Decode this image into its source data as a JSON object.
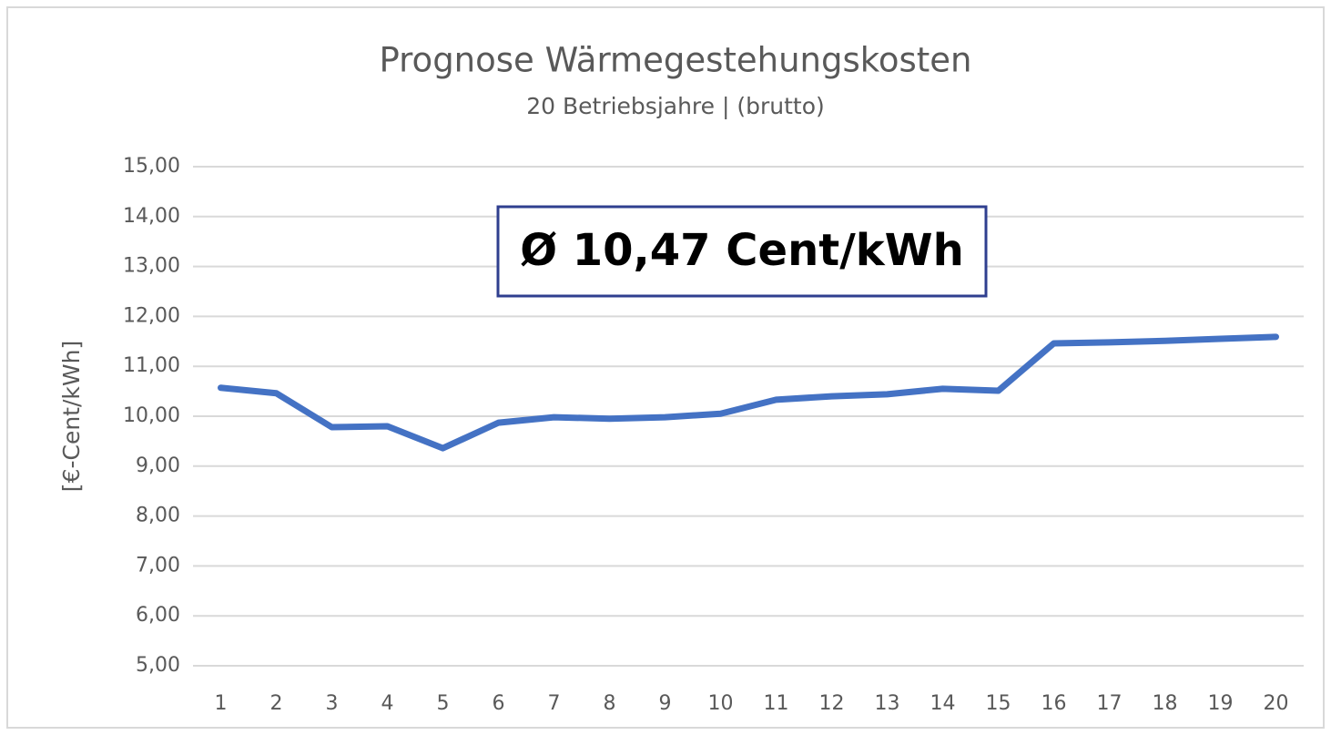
{
  "chart_data": {
    "type": "line",
    "title": "Prognose Wärmegestehungskosten",
    "subtitle": "20 Betriebsjahre | (brutto)",
    "y_label": "[€-Cent/kWh]",
    "annotation": "Ø 10,47 Cent/kWh",
    "categories": [
      "1",
      "2",
      "3",
      "4",
      "5",
      "6",
      "7",
      "8",
      "9",
      "10",
      "11",
      "12",
      "13",
      "14",
      "15",
      "16",
      "17",
      "18",
      "19",
      "20"
    ],
    "series": [
      {
        "name": "Wärmegestehungskosten",
        "color": "#4472c4",
        "values": [
          10.57,
          10.46,
          9.78,
          9.8,
          9.36,
          9.87,
          9.98,
          9.95,
          9.98,
          10.05,
          10.33,
          10.4,
          10.44,
          10.55,
          10.51,
          11.46,
          11.48,
          11.51,
          11.55,
          11.59
        ]
      }
    ],
    "ylim": [
      5,
      15
    ],
    "yticks": [
      {
        "value": 5,
        "label": "5,00"
      },
      {
        "value": 6,
        "label": "6,00"
      },
      {
        "value": 7,
        "label": "7,00"
      },
      {
        "value": 8,
        "label": "8,00"
      },
      {
        "value": 9,
        "label": "9,00"
      },
      {
        "value": 10,
        "label": "10,00"
      },
      {
        "value": 11,
        "label": "11,00"
      },
      {
        "value": 12,
        "label": "12,00"
      },
      {
        "value": 13,
        "label": "13,00"
      },
      {
        "value": 14,
        "label": "14,00"
      },
      {
        "value": 15,
        "label": "15,00"
      }
    ],
    "grid": true
  }
}
